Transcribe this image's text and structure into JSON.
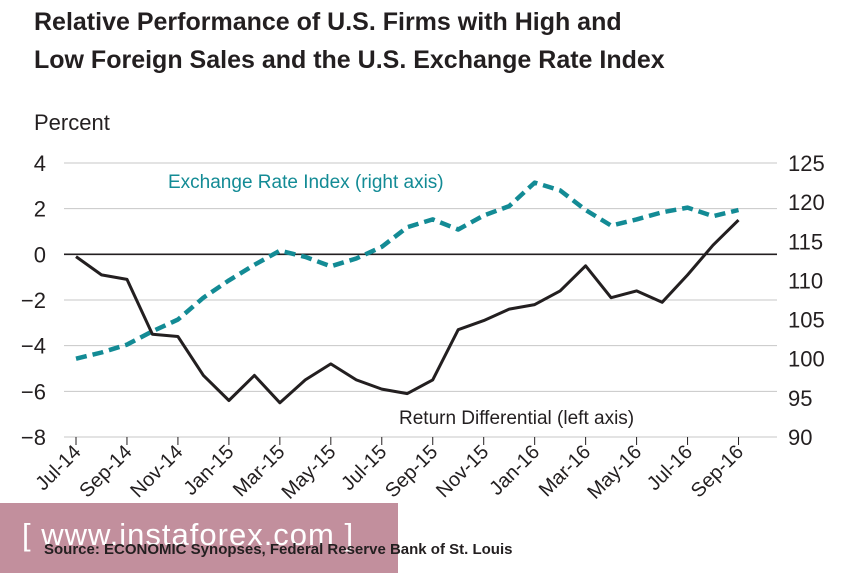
{
  "chart_data": {
    "type": "line",
    "title_lines": [
      "Relative Performance of U.S. Firms with High and",
      "Low Foreign Sales and the U.S. Exchange Rate Index"
    ],
    "ylabel": "Percent",
    "categories": [
      "Jul-14",
      "Sep-14",
      "Nov-14",
      "Jan-15",
      "Mar-15",
      "May-15",
      "Jul-15",
      "Sep-15",
      "Nov-15",
      "Jan-16",
      "Mar-16",
      "May-16",
      "Jul-16",
      "Sep-16"
    ],
    "left_axis": {
      "ylim": [
        -8,
        4
      ],
      "ticks": [
        4,
        2,
        0,
        -2,
        -4,
        -6,
        -8
      ],
      "tick_labels": [
        "4",
        "2",
        "0",
        "−2",
        "−4",
        "−6",
        "−8"
      ]
    },
    "right_axis": {
      "ylim": [
        90,
        125
      ],
      "ticks": [
        125,
        120,
        115,
        110,
        105,
        100,
        95,
        90
      ],
      "tick_labels": [
        "125",
        "120",
        "115",
        "110",
        "105",
        "100",
        "95",
        "90"
      ]
    },
    "series": [
      {
        "name": "Exchange Rate Index (right axis)",
        "axis": "right",
        "color": "#138b95",
        "style": "dashed",
        "x": [
          0,
          1,
          2,
          3,
          4,
          5,
          6,
          7,
          8,
          9,
          10,
          11,
          12,
          13,
          14,
          15,
          16,
          17,
          18,
          19,
          20,
          21,
          22,
          23,
          24,
          25,
          26,
          27
        ],
        "values": [
          100.0,
          100.8,
          101.8,
          103.5,
          105.0,
          107.8,
          110.0,
          112.0,
          113.8,
          113.0,
          111.8,
          112.8,
          114.3,
          116.8,
          117.8,
          116.5,
          118.3,
          119.5,
          122.5,
          121.5,
          119.0,
          117.0,
          117.8,
          118.7,
          119.3,
          118.2,
          119.0,
          null
        ]
      },
      {
        "name": "Return Differential (left axis)",
        "axis": "left",
        "color": "#231f20",
        "style": "solid",
        "x": [
          0,
          1,
          2,
          3,
          4,
          5,
          6,
          7,
          8,
          9,
          10,
          11,
          12,
          13,
          14,
          15,
          16,
          17,
          18,
          19,
          20,
          21,
          22,
          23,
          24,
          25,
          26,
          27
        ],
        "values": [
          -0.1,
          -0.9,
          -1.1,
          -3.5,
          -3.6,
          -5.3,
          -6.4,
          -5.3,
          -6.5,
          -5.5,
          -4.8,
          -5.5,
          -5.9,
          -6.1,
          -5.5,
          -3.3,
          -2.9,
          -2.4,
          -2.2,
          -1.6,
          -0.5,
          -1.9,
          -1.6,
          -2.1,
          -0.9,
          0.4,
          1.5,
          null
        ]
      }
    ]
  },
  "source": "Source: ECONOMIC Synopses, Federal Reserve Bank of St. Louis",
  "watermark": "[ www.instaforex.com ]",
  "colors": {
    "accent": "#138b95",
    "text": "#231f20",
    "watermark_bg": "#b77b8c"
  }
}
